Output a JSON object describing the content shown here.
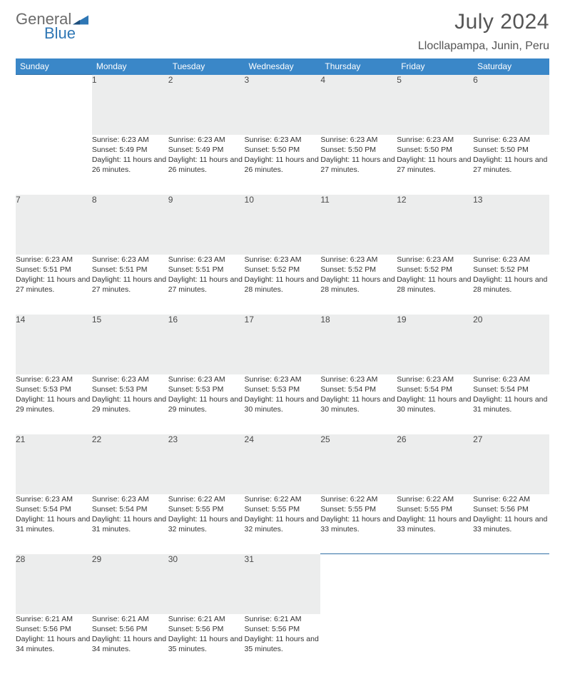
{
  "logo": {
    "textA": "General",
    "textB": "Blue"
  },
  "title": "July 2024",
  "location": "Llocllapampa, Junin, Peru",
  "colors": {
    "header_bg": "#3a87c8",
    "header_text": "#ffffff",
    "daynum_bg": "#eceded",
    "rule": "#2f6fa5",
    "body_text": "#333333"
  },
  "weekdays": [
    "Sunday",
    "Monday",
    "Tuesday",
    "Wednesday",
    "Thursday",
    "Friday",
    "Saturday"
  ],
  "weeks": [
    [
      null,
      {
        "n": "1",
        "sr": "6:23 AM",
        "ss": "5:49 PM",
        "dl": "11 hours and 26 minutes."
      },
      {
        "n": "2",
        "sr": "6:23 AM",
        "ss": "5:49 PM",
        "dl": "11 hours and 26 minutes."
      },
      {
        "n": "3",
        "sr": "6:23 AM",
        "ss": "5:50 PM",
        "dl": "11 hours and 26 minutes."
      },
      {
        "n": "4",
        "sr": "6:23 AM",
        "ss": "5:50 PM",
        "dl": "11 hours and 27 minutes."
      },
      {
        "n": "5",
        "sr": "6:23 AM",
        "ss": "5:50 PM",
        "dl": "11 hours and 27 minutes."
      },
      {
        "n": "6",
        "sr": "6:23 AM",
        "ss": "5:50 PM",
        "dl": "11 hours and 27 minutes."
      }
    ],
    [
      {
        "n": "7",
        "sr": "6:23 AM",
        "ss": "5:51 PM",
        "dl": "11 hours and 27 minutes."
      },
      {
        "n": "8",
        "sr": "6:23 AM",
        "ss": "5:51 PM",
        "dl": "11 hours and 27 minutes."
      },
      {
        "n": "9",
        "sr": "6:23 AM",
        "ss": "5:51 PM",
        "dl": "11 hours and 27 minutes."
      },
      {
        "n": "10",
        "sr": "6:23 AM",
        "ss": "5:52 PM",
        "dl": "11 hours and 28 minutes."
      },
      {
        "n": "11",
        "sr": "6:23 AM",
        "ss": "5:52 PM",
        "dl": "11 hours and 28 minutes."
      },
      {
        "n": "12",
        "sr": "6:23 AM",
        "ss": "5:52 PM",
        "dl": "11 hours and 28 minutes."
      },
      {
        "n": "13",
        "sr": "6:23 AM",
        "ss": "5:52 PM",
        "dl": "11 hours and 28 minutes."
      }
    ],
    [
      {
        "n": "14",
        "sr": "6:23 AM",
        "ss": "5:53 PM",
        "dl": "11 hours and 29 minutes."
      },
      {
        "n": "15",
        "sr": "6:23 AM",
        "ss": "5:53 PM",
        "dl": "11 hours and 29 minutes."
      },
      {
        "n": "16",
        "sr": "6:23 AM",
        "ss": "5:53 PM",
        "dl": "11 hours and 29 minutes."
      },
      {
        "n": "17",
        "sr": "6:23 AM",
        "ss": "5:53 PM",
        "dl": "11 hours and 30 minutes."
      },
      {
        "n": "18",
        "sr": "6:23 AM",
        "ss": "5:54 PM",
        "dl": "11 hours and 30 minutes."
      },
      {
        "n": "19",
        "sr": "6:23 AM",
        "ss": "5:54 PM",
        "dl": "11 hours and 30 minutes."
      },
      {
        "n": "20",
        "sr": "6:23 AM",
        "ss": "5:54 PM",
        "dl": "11 hours and 31 minutes."
      }
    ],
    [
      {
        "n": "21",
        "sr": "6:23 AM",
        "ss": "5:54 PM",
        "dl": "11 hours and 31 minutes."
      },
      {
        "n": "22",
        "sr": "6:23 AM",
        "ss": "5:54 PM",
        "dl": "11 hours and 31 minutes."
      },
      {
        "n": "23",
        "sr": "6:22 AM",
        "ss": "5:55 PM",
        "dl": "11 hours and 32 minutes."
      },
      {
        "n": "24",
        "sr": "6:22 AM",
        "ss": "5:55 PM",
        "dl": "11 hours and 32 minutes."
      },
      {
        "n": "25",
        "sr": "6:22 AM",
        "ss": "5:55 PM",
        "dl": "11 hours and 33 minutes."
      },
      {
        "n": "26",
        "sr": "6:22 AM",
        "ss": "5:55 PM",
        "dl": "11 hours and 33 minutes."
      },
      {
        "n": "27",
        "sr": "6:22 AM",
        "ss": "5:56 PM",
        "dl": "11 hours and 33 minutes."
      }
    ],
    [
      {
        "n": "28",
        "sr": "6:21 AM",
        "ss": "5:56 PM",
        "dl": "11 hours and 34 minutes."
      },
      {
        "n": "29",
        "sr": "6:21 AM",
        "ss": "5:56 PM",
        "dl": "11 hours and 34 minutes."
      },
      {
        "n": "30",
        "sr": "6:21 AM",
        "ss": "5:56 PM",
        "dl": "11 hours and 35 minutes."
      },
      {
        "n": "31",
        "sr": "6:21 AM",
        "ss": "5:56 PM",
        "dl": "11 hours and 35 minutes."
      },
      null,
      null,
      null
    ]
  ],
  "labels": {
    "sunrise": "Sunrise:",
    "sunset": "Sunset:",
    "daylight": "Daylight:"
  }
}
